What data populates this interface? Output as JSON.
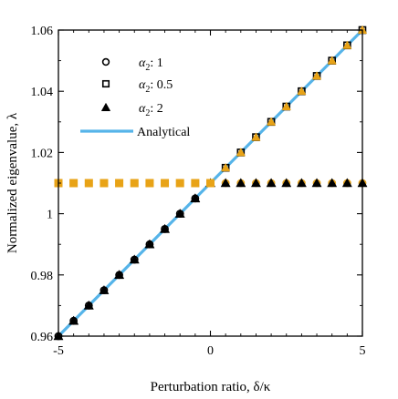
{
  "chart_data": {
    "type": "scatter",
    "xlabel": "Perturbation ratio, δ/κ",
    "ylabel": "Normalized eigenvalue, λ",
    "xlim": [
      -5,
      5
    ],
    "ylim": [
      0.96,
      1.06
    ],
    "xticks": [
      -5,
      0,
      5
    ],
    "xtick_labels": [
      "-5",
      "0",
      "5"
    ],
    "yticks": [
      0.96,
      0.98,
      1.0,
      1.02,
      1.04,
      1.06
    ],
    "ytick_labels": [
      "0.96",
      "0.98",
      "1",
      "1.02",
      "1.04",
      "1.06"
    ],
    "grid": false,
    "legend_position": "upper-left",
    "x": [
      -5,
      -4.5,
      -4,
      -3.5,
      -3,
      -2.5,
      -2,
      -1.5,
      -1,
      -0.5,
      0,
      0.5,
      1,
      1.5,
      2,
      2.5,
      3,
      3.5,
      4,
      4.5,
      5
    ],
    "series": [
      {
        "name": "α2: 1",
        "legend_name": "α",
        "legend_sub": "2",
        "legend_value": ": 1",
        "marker": "circle",
        "color": "#000000",
        "highlight_color": "#e8a317",
        "values": [
          0.96,
          0.965,
          0.97,
          0.975,
          0.98,
          0.985,
          0.99,
          0.995,
          1.0,
          1.005,
          1.01,
          1.01,
          1.01,
          1.01,
          1.01,
          1.01,
          1.01,
          1.01,
          1.01,
          1.01,
          1.01
        ]
      },
      {
        "name": "α2: 0.5",
        "legend_name": "α",
        "legend_sub": "2",
        "legend_value": ": 0.5",
        "marker": "square",
        "color": "#000000",
        "highlight_color": "#e8a317",
        "values": [
          1.01,
          1.01,
          1.01,
          1.01,
          1.01,
          1.01,
          1.01,
          1.01,
          1.01,
          1.01,
          1.01,
          1.015,
          1.02,
          1.025,
          1.03,
          1.035,
          1.04,
          1.045,
          1.05,
          1.055,
          1.06
        ]
      },
      {
        "name": "α2: 2",
        "legend_name": "α",
        "legend_sub": "2",
        "legend_value": ": 2",
        "marker": "triangle",
        "color": "#000000",
        "values": [
          0.96,
          0.965,
          0.97,
          0.975,
          0.98,
          0.985,
          0.99,
          0.995,
          1.0,
          1.005,
          1.01,
          1.01,
          1.01,
          1.01,
          1.01,
          1.01,
          1.01,
          1.01,
          1.01,
          1.01,
          1.01
        ]
      }
    ],
    "analytical": {
      "name": "Analytical",
      "color": "#56b4e9",
      "x": [
        -5,
        5
      ],
      "values": [
        0.96,
        1.06
      ]
    }
  }
}
